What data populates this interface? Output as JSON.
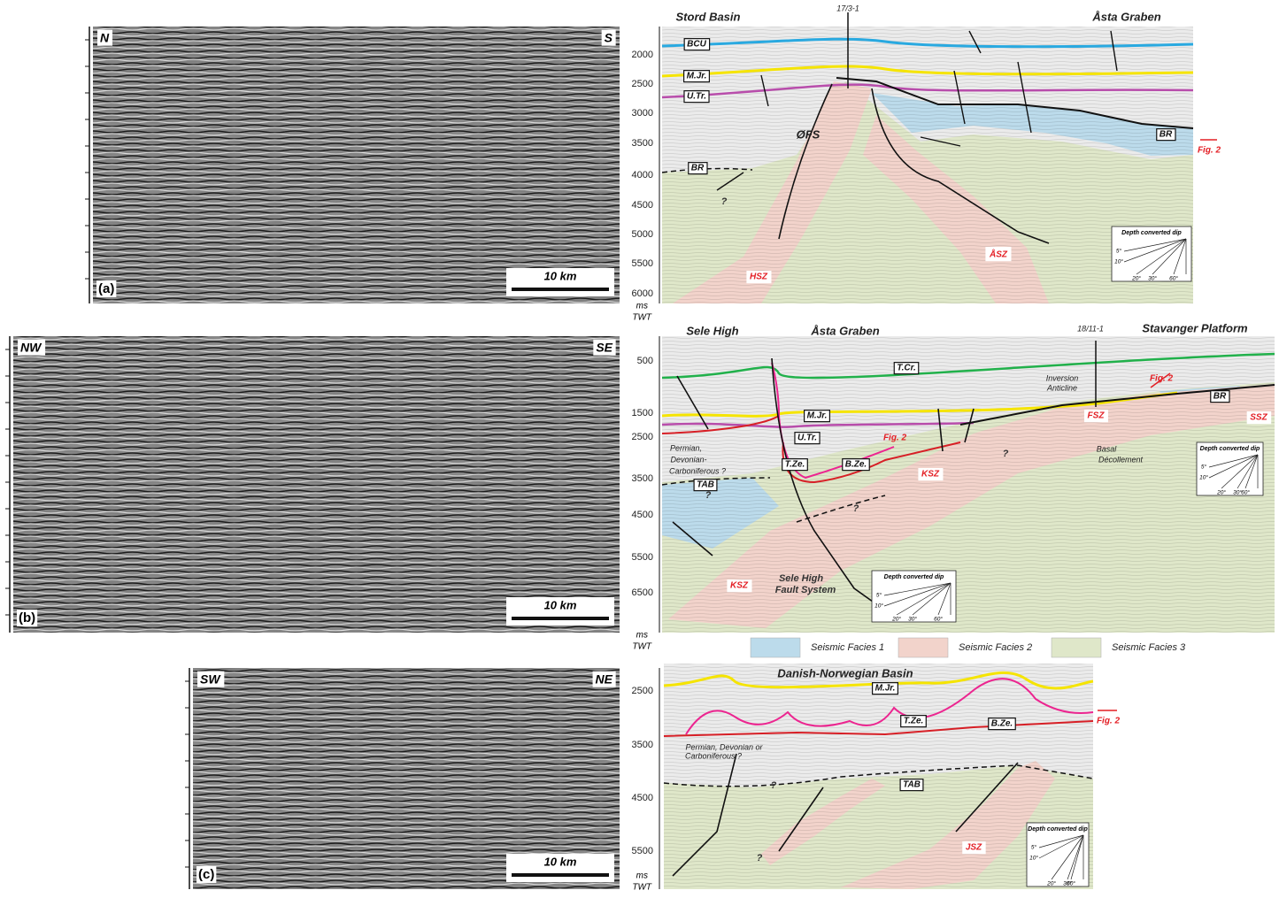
{
  "panels": [
    {
      "label": "(a)",
      "left": "N",
      "right": "S",
      "scale": "10 km",
      "axis": {
        "ticks": [
          "2000",
          "2500",
          "3000",
          "3500",
          "4000",
          "4500",
          "5000",
          "5500",
          "6000"
        ],
        "unit": "ms",
        "unit2": "TWT"
      },
      "annotations": [
        "Stord Basin",
        "17/3-1",
        "Åsta Graben",
        "BCU",
        "M.Jr.",
        "U.Tr.",
        "ØFS",
        "BR",
        "BR",
        "?",
        "HSZ",
        "ÅSZ",
        "Fig. 2",
        "Depth converted dip",
        "5°",
        "10°",
        "20°",
        "30°",
        "60°"
      ]
    },
    {
      "label": "(b)",
      "left": "NW",
      "right": "SE",
      "scale": "10 km",
      "axis": {
        "ticks": [
          "500",
          "1500",
          "2500",
          "3500",
          "4500",
          "5500",
          "6500"
        ],
        "unit": "ms",
        "unit2": "TWT"
      },
      "annotations": [
        "Sele High",
        "Åsta Graben",
        "18/11-1",
        "Stavanger Platform",
        "T.Cr.",
        "Inversion",
        "Anticline",
        "Fig. 2",
        "BR",
        "M.Jr.",
        "U.Tr.",
        "Fig. 2",
        "T.Ze.",
        "B.Ze.",
        "Permian,",
        "Devonian-",
        "Carboniferous ?",
        "TAB",
        "?",
        "KSZ",
        "FSZ",
        "SSZ",
        "Basal",
        "Décollement",
        "?",
        "?",
        "KSZ",
        "Sele High",
        "Fault System",
        "Depth converted dip",
        "5°",
        "10°",
        "20°",
        "30°",
        "60°",
        "Depth converted dip",
        "5°",
        "10°",
        "20°",
        "30°",
        "60°"
      ]
    },
    {
      "label": "(c)",
      "left": "SW",
      "right": "NE",
      "scale": "10 km",
      "axis": {
        "ticks": [
          "2500",
          "3500",
          "4500",
          "5500"
        ],
        "unit": "ms",
        "unit2": "TWT"
      },
      "annotations": [
        "Danish-Norwegian Basin",
        "M.Jr.",
        "T.Ze.",
        "B.Ze.",
        "Fig. 2",
        "Permian, Devonian or",
        "Carboniferous ?",
        "?",
        "TAB",
        "JSZ",
        "?",
        "Depth converted dip",
        "5°",
        "10°",
        "20°",
        "30°",
        "60°"
      ]
    }
  ],
  "legend": [
    "Seismic Facies 1",
    "Seismic Facies 2",
    "Seismic Facies 3"
  ]
}
